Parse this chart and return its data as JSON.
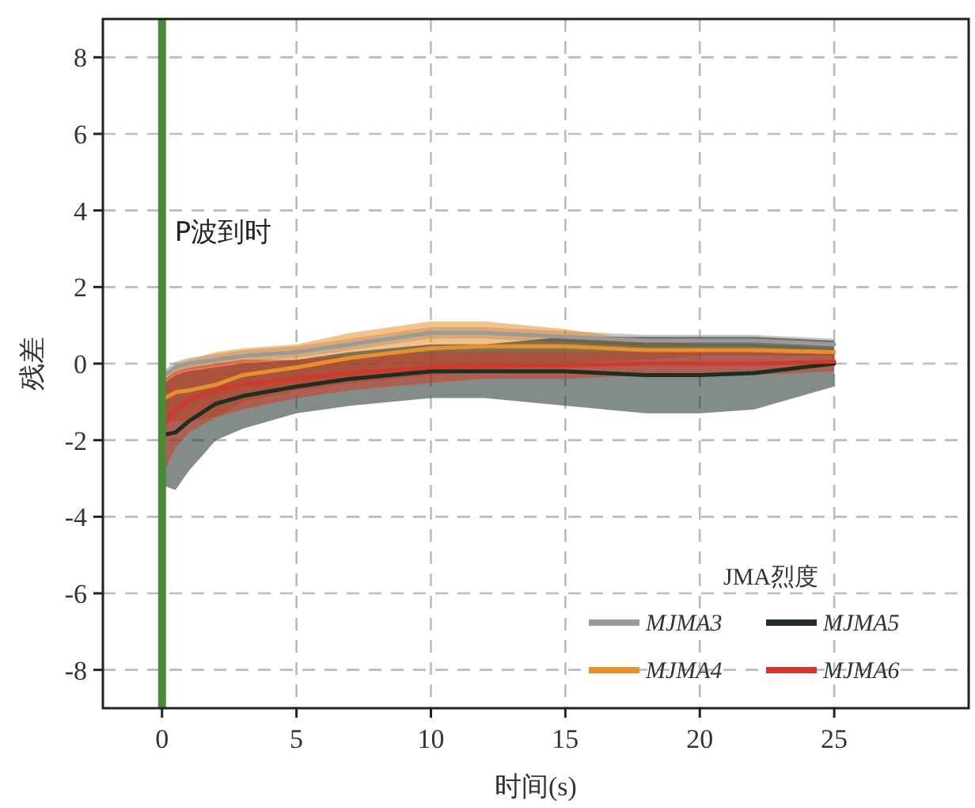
{
  "chart_data": {
    "type": "line",
    "xlabel": "时间(s)",
    "ylabel": "残差",
    "legend_title": "JMA烈度",
    "legend": "bottom right",
    "grid": true,
    "line_style": "solid",
    "marker": "none",
    "x": [
      0.1,
      0.5,
      1,
      2,
      3,
      5,
      7,
      10,
      12,
      15,
      18,
      20,
      22,
      25
    ],
    "xlim": [
      -2.2,
      30
    ],
    "xticks": [
      0,
      5,
      10,
      15,
      20,
      25
    ],
    "ylim": [
      -9,
      9
    ],
    "yticks": [
      -8,
      -6,
      -4,
      -2,
      0,
      2,
      4,
      6,
      8
    ],
    "ref_lines": [
      {
        "axis": "x",
        "value": 0,
        "label": "P波到时",
        "color": "#4a8a3c",
        "line_style": "solid"
      }
    ],
    "series": [
      {
        "name": "MJMA3",
        "color": "#9a9a9a",
        "values": [
          -0.3,
          -0.1,
          0,
          0.1,
          0.2,
          0.3,
          0.5,
          0.8,
          0.8,
          0.7,
          0.6,
          0.6,
          0.6,
          0.5
        ],
        "lower": [
          -0.45,
          -0.25,
          -0.15,
          -0.05,
          0.05,
          0.15,
          0.35,
          0.65,
          0.65,
          0.55,
          0.45,
          0.45,
          0.45,
          0.35
        ],
        "upper": [
          -0.15,
          0.05,
          0.15,
          0.25,
          0.35,
          0.45,
          0.65,
          0.95,
          0.95,
          0.85,
          0.75,
          0.75,
          0.75,
          0.65
        ]
      },
      {
        "name": "MJMA4",
        "color": "#e98f2e",
        "values": [
          -0.9,
          -0.75,
          -0.7,
          -0.55,
          -0.3,
          -0.1,
          0.15,
          0.4,
          0.45,
          0.45,
          0.35,
          0.35,
          0.35,
          0.3
        ],
        "lower": [
          -1.5,
          -1.5,
          -1.5,
          -1.4,
          -1.0,
          -0.7,
          -0.5,
          -0.3,
          -0.2,
          0,
          0.1,
          0.2,
          0.2,
          0.2
        ],
        "upper": [
          -0.3,
          0,
          0.1,
          0.3,
          0.4,
          0.5,
          0.8,
          1.1,
          1.1,
          0.9,
          0.6,
          0.5,
          0.5,
          0.4
        ]
      },
      {
        "name": "MJMA5",
        "color": "#1e2e22",
        "values": [
          -1.85,
          -1.8,
          -1.5,
          -1.05,
          -0.85,
          -0.6,
          -0.4,
          -0.2,
          -0.2,
          -0.2,
          -0.3,
          -0.3,
          -0.25,
          0
        ],
        "lower": [
          -3.2,
          -3.3,
          -2.8,
          -2.0,
          -1.7,
          -1.3,
          -1.1,
          -0.9,
          -0.9,
          -1.1,
          -1.3,
          -1.3,
          -1.2,
          -0.6
        ],
        "upper": [
          -0.5,
          -0.3,
          -0.2,
          -0.1,
          0,
          0.1,
          0.3,
          0.5,
          0.5,
          0.7,
          0.7,
          0.7,
          0.7,
          0.6
        ]
      },
      {
        "name": "MJMA6",
        "color": "#d03a2c",
        "values": [
          -1.6,
          -1.2,
          -0.95,
          -0.7,
          -0.55,
          -0.4,
          -0.25,
          -0.1,
          -0.05,
          -0.05,
          0,
          0,
          0,
          0.05
        ],
        "lower": [
          -2.8,
          -2.2,
          -1.8,
          -1.4,
          -1.2,
          -0.9,
          -0.7,
          -0.5,
          -0.4,
          -0.4,
          -0.3,
          -0.3,
          -0.3,
          -0.2
        ],
        "upper": [
          -0.4,
          -0.2,
          -0.1,
          0,
          0.1,
          0.1,
          0.2,
          0.3,
          0.3,
          0.3,
          0.3,
          0.3,
          0.3,
          0.3
        ]
      }
    ]
  }
}
